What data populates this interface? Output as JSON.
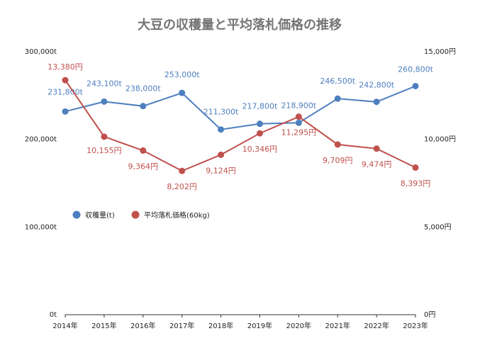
{
  "chart_data": {
    "type": "line",
    "title": "大豆の収穫量と平均落札価格の推移",
    "categories": [
      "2014年",
      "2015年",
      "2016年",
      "2017年",
      "2018年",
      "2019年",
      "2020年",
      "2021年",
      "2022年",
      "2023年"
    ],
    "y_left": {
      "ylim": [
        0,
        300000
      ],
      "ticks": [
        0,
        100000,
        200000,
        300000
      ],
      "tick_labels": [
        "0t",
        "100,000t",
        "200,000t",
        "300,000t"
      ]
    },
    "y_right": {
      "ylim": [
        0,
        15000
      ],
      "ticks": [
        0,
        5000,
        10000,
        15000
      ],
      "tick_labels": [
        "0円",
        "5,000円",
        "10,000円",
        "15,000円"
      ]
    },
    "grid": false,
    "legend_position": "left-middle",
    "series": [
      {
        "name": "収穫量(t)",
        "axis": "left",
        "color": "#4e7fbf",
        "values": [
          231800,
          243100,
          238000,
          253000,
          211300,
          217800,
          218900,
          246500,
          242800,
          260800
        ],
        "labels": [
          "231,800t",
          "243,100t",
          "238,000t",
          "253,000t",
          "211,300t",
          "217,800t",
          "218,900t",
          "246,500t",
          "242,800t",
          "260,800t"
        ]
      },
      {
        "name": "平均落札価格(60kg)",
        "axis": "right",
        "color": "#c0504d",
        "values": [
          13380,
          10155,
          9364,
          8202,
          9124,
          10346,
          11295,
          9709,
          9474,
          8393
        ],
        "labels": [
          "13,380円",
          "10,155円",
          "9,364円",
          "8,202円",
          "9,124円",
          "10,346円",
          "11,295円",
          "9,709円",
          "9,474円",
          "8,393円"
        ]
      }
    ]
  }
}
